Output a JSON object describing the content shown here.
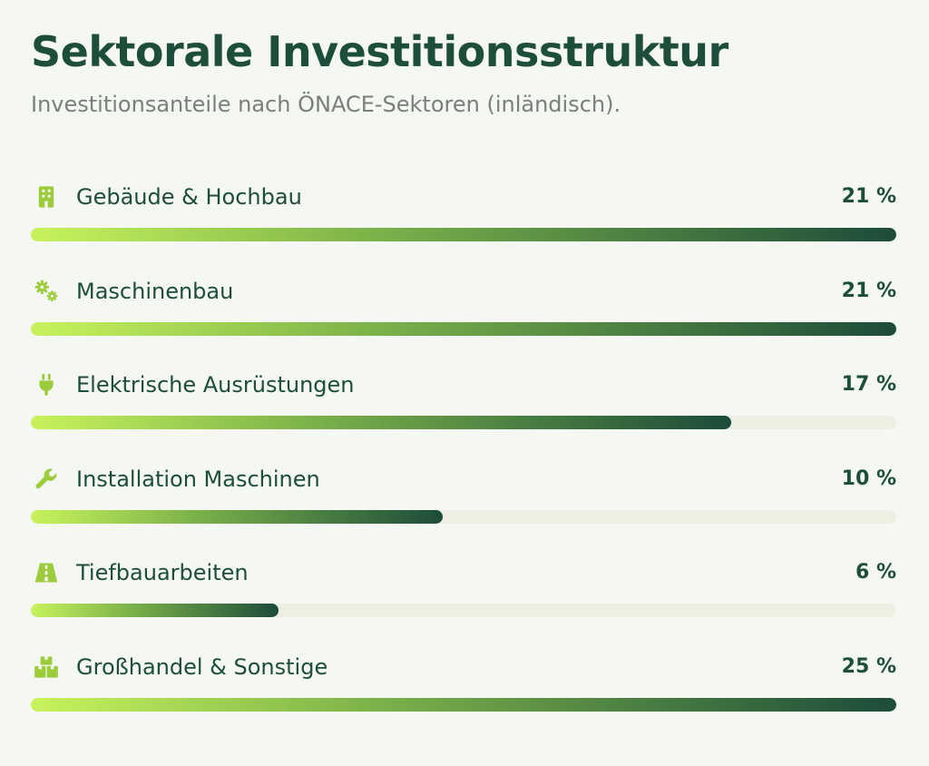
{
  "header": {
    "title": "Sektorale Investitionsstruktur",
    "subtitle": "Investitionsanteile nach ÖNACE-Sektoren (inländisch)."
  },
  "colors": {
    "accent_light": "#c8f25c",
    "accent_dark": "#1c4c3a",
    "icon": "#9ccc3c",
    "text": "#1d4d3b",
    "track": "#ecefe2"
  },
  "chart_data": {
    "type": "bar",
    "orientation": "horizontal",
    "max_value": 21,
    "categories": [
      "Gebäude & Hochbau",
      "Maschinenbau",
      "Elektrische Ausrüstungen",
      "Installation Maschinen",
      "Tiefbauarbeiten",
      "Großhandel & Sonstige"
    ],
    "values": [
      21,
      21,
      17,
      10,
      6,
      25
    ],
    "value_labels": [
      "21 %",
      "21 %",
      "17 %",
      "10 %",
      "6 %",
      "25 %"
    ],
    "icons": [
      "building-icon",
      "gears-icon",
      "plug-icon",
      "wrench-icon",
      "road-icon",
      "boxes-icon"
    ]
  }
}
